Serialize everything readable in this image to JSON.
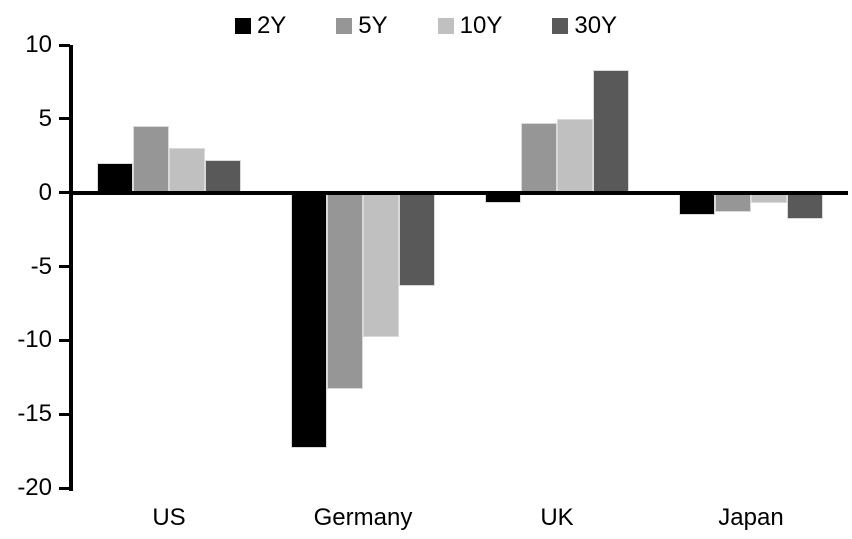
{
  "chart_data": {
    "type": "bar",
    "title": "",
    "xlabel": "",
    "ylabel": "",
    "categories": [
      "US",
      "Germany",
      "UK",
      "Japan"
    ],
    "series": [
      {
        "name": "2Y",
        "color": "#000000",
        "values": [
          2.0,
          -17.3,
          -0.7,
          -1.5
        ]
      },
      {
        "name": "5Y",
        "color": "#969696",
        "values": [
          4.5,
          -13.3,
          4.7,
          -1.3
        ]
      },
      {
        "name": "10Y",
        "color": "#c0c0c0",
        "values": [
          3.0,
          -9.8,
          5.0,
          -0.7
        ]
      },
      {
        "name": "30Y",
        "color": "#595959",
        "values": [
          2.2,
          -6.3,
          8.3,
          -1.8
        ]
      }
    ],
    "yticks": [
      10,
      5,
      0,
      -5,
      -10,
      -15,
      -20
    ],
    "ylim": [
      -20,
      10
    ],
    "grid": false,
    "legend_position": "top",
    "axis_color": "#000000",
    "bar_outline_color": "#d9d9d9"
  }
}
